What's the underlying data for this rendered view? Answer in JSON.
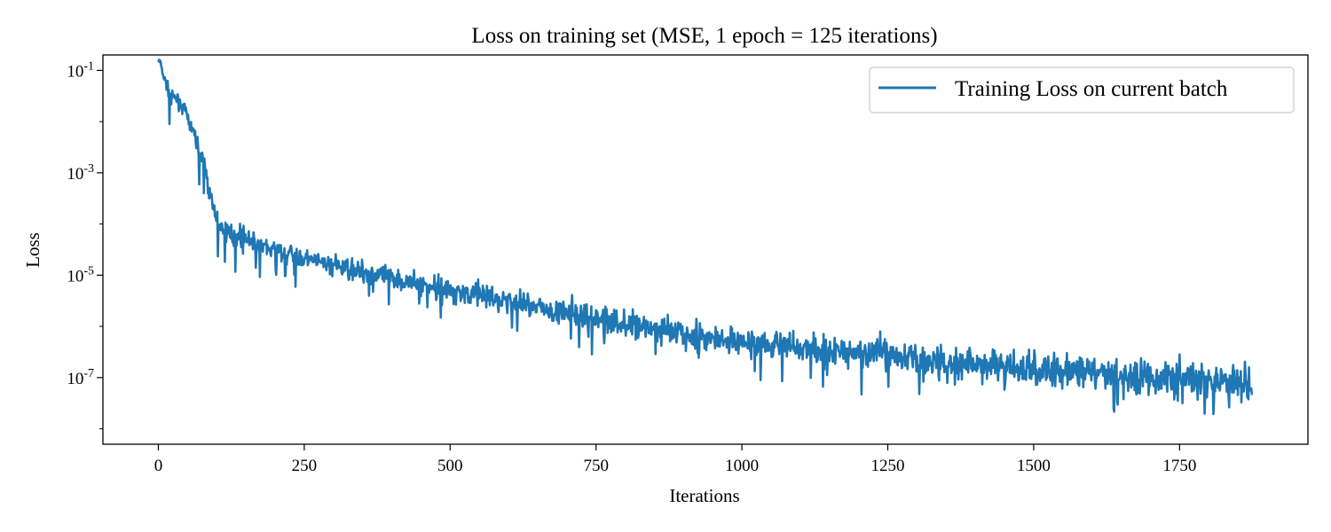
{
  "chart_data": {
    "type": "line",
    "title": "Loss on training set   (MSE, 1 epoch = 125 iterations)",
    "xlabel": "Iterations",
    "ylabel": "Loss",
    "yscale": "log",
    "xlim": [
      -95,
      1970
    ],
    "ylim": [
      5e-09,
      0.2
    ],
    "xticks": [
      0,
      250,
      500,
      750,
      1000,
      1250,
      1500,
      1750
    ],
    "xtick_labels": [
      "0",
      "250",
      "500",
      "750",
      "1000",
      "1250",
      "1500",
      "1750"
    ],
    "yticks": [
      1e-07,
      1e-05,
      0.001,
      0.1
    ],
    "ytick_labels": [
      {
        "base": "10",
        "exp": "-7"
      },
      {
        "base": "10",
        "exp": "-5"
      },
      {
        "base": "10",
        "exp": "-3"
      },
      {
        "base": "10",
        "exp": "-1"
      }
    ],
    "legend_position": "top-right",
    "grid": false,
    "series": [
      {
        "name": "Training Loss on current batch",
        "color": "#1f77b4",
        "trend_x": [
          0,
          5,
          10,
          20,
          30,
          40,
          50,
          60,
          70,
          80,
          90,
          100,
          110,
          120,
          150,
          200,
          250,
          300,
          350,
          400,
          500,
          600,
          700,
          800,
          900,
          1000,
          1100,
          1200,
          1300,
          1400,
          1500,
          1600,
          1700,
          1800,
          1875
        ],
        "trend_y": [
          0.16,
          0.12,
          0.07,
          0.035,
          0.028,
          0.02,
          0.012,
          0.006,
          0.003,
          0.0012,
          0.0003,
          0.00012,
          8e-05,
          6.5e-05,
          5e-05,
          3e-05,
          2.1e-05,
          1.6e-05,
          1.2e-05,
          9e-06,
          5e-06,
          3.2e-06,
          1.8e-06,
          1.1e-06,
          7e-07,
          5e-07,
          3.8e-07,
          3e-07,
          2.3e-07,
          1.8e-07,
          1.5e-07,
          1.2e-07,
          1e-07,
          8.5e-08,
          8e-08
        ],
        "n_points": 1875
      }
    ]
  }
}
